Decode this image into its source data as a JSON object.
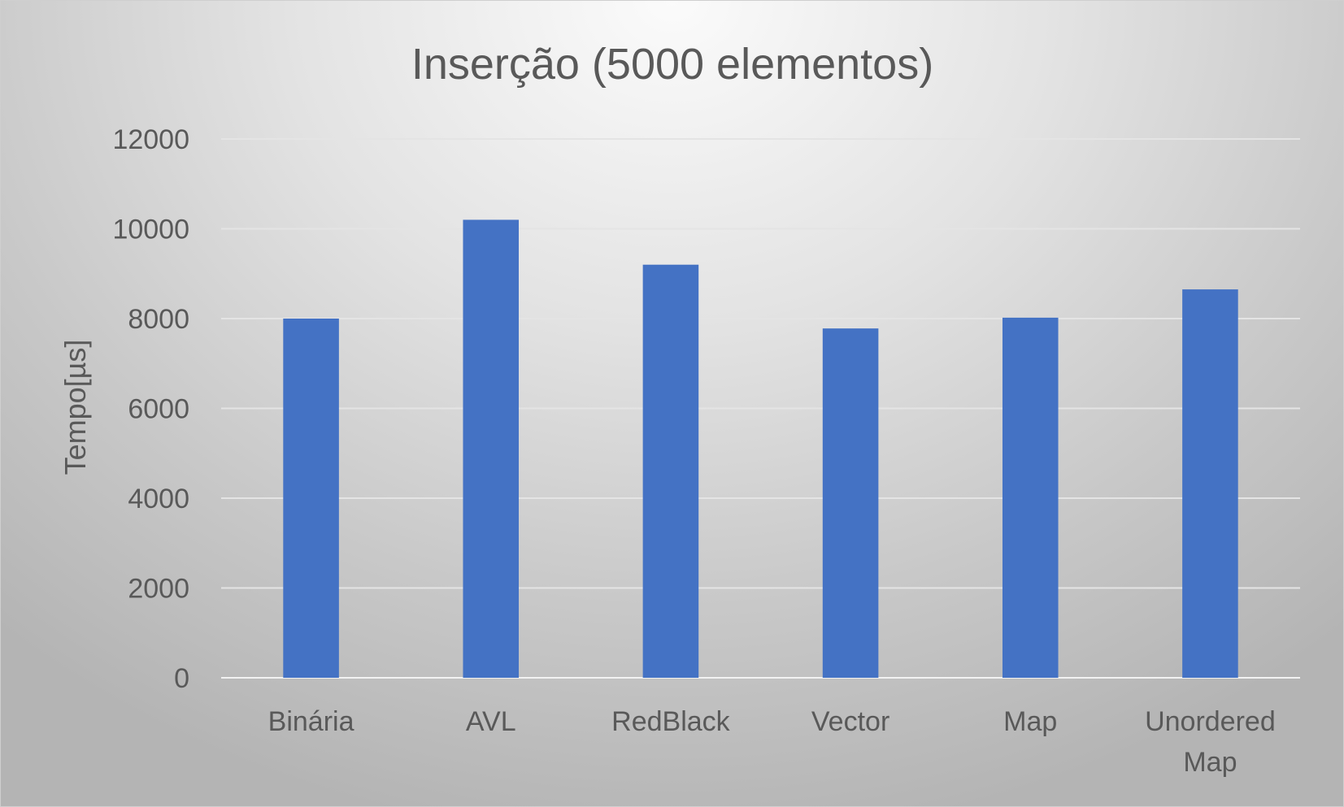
{
  "chart_data": {
    "type": "bar",
    "title": "Inserção (5000 elementos)",
    "xlabel": "",
    "ylabel": "Tempo[µs]",
    "ylim": [
      0,
      12000
    ],
    "yticks": [
      0,
      2000,
      4000,
      6000,
      8000,
      10000,
      12000
    ],
    "grid": true,
    "legend": "none",
    "categories": [
      "Binária",
      "AVL",
      "RedBlack",
      "Vector",
      "Map",
      "Unordered Map"
    ],
    "category_lines": [
      [
        "Binária"
      ],
      [
        "AVL"
      ],
      [
        "RedBlack"
      ],
      [
        "Vector"
      ],
      [
        "Map"
      ],
      [
        "Unordered",
        "Map"
      ]
    ],
    "values": [
      8000,
      10200,
      9200,
      7780,
      8020,
      8650
    ],
    "bar_color": "#4472C4"
  }
}
